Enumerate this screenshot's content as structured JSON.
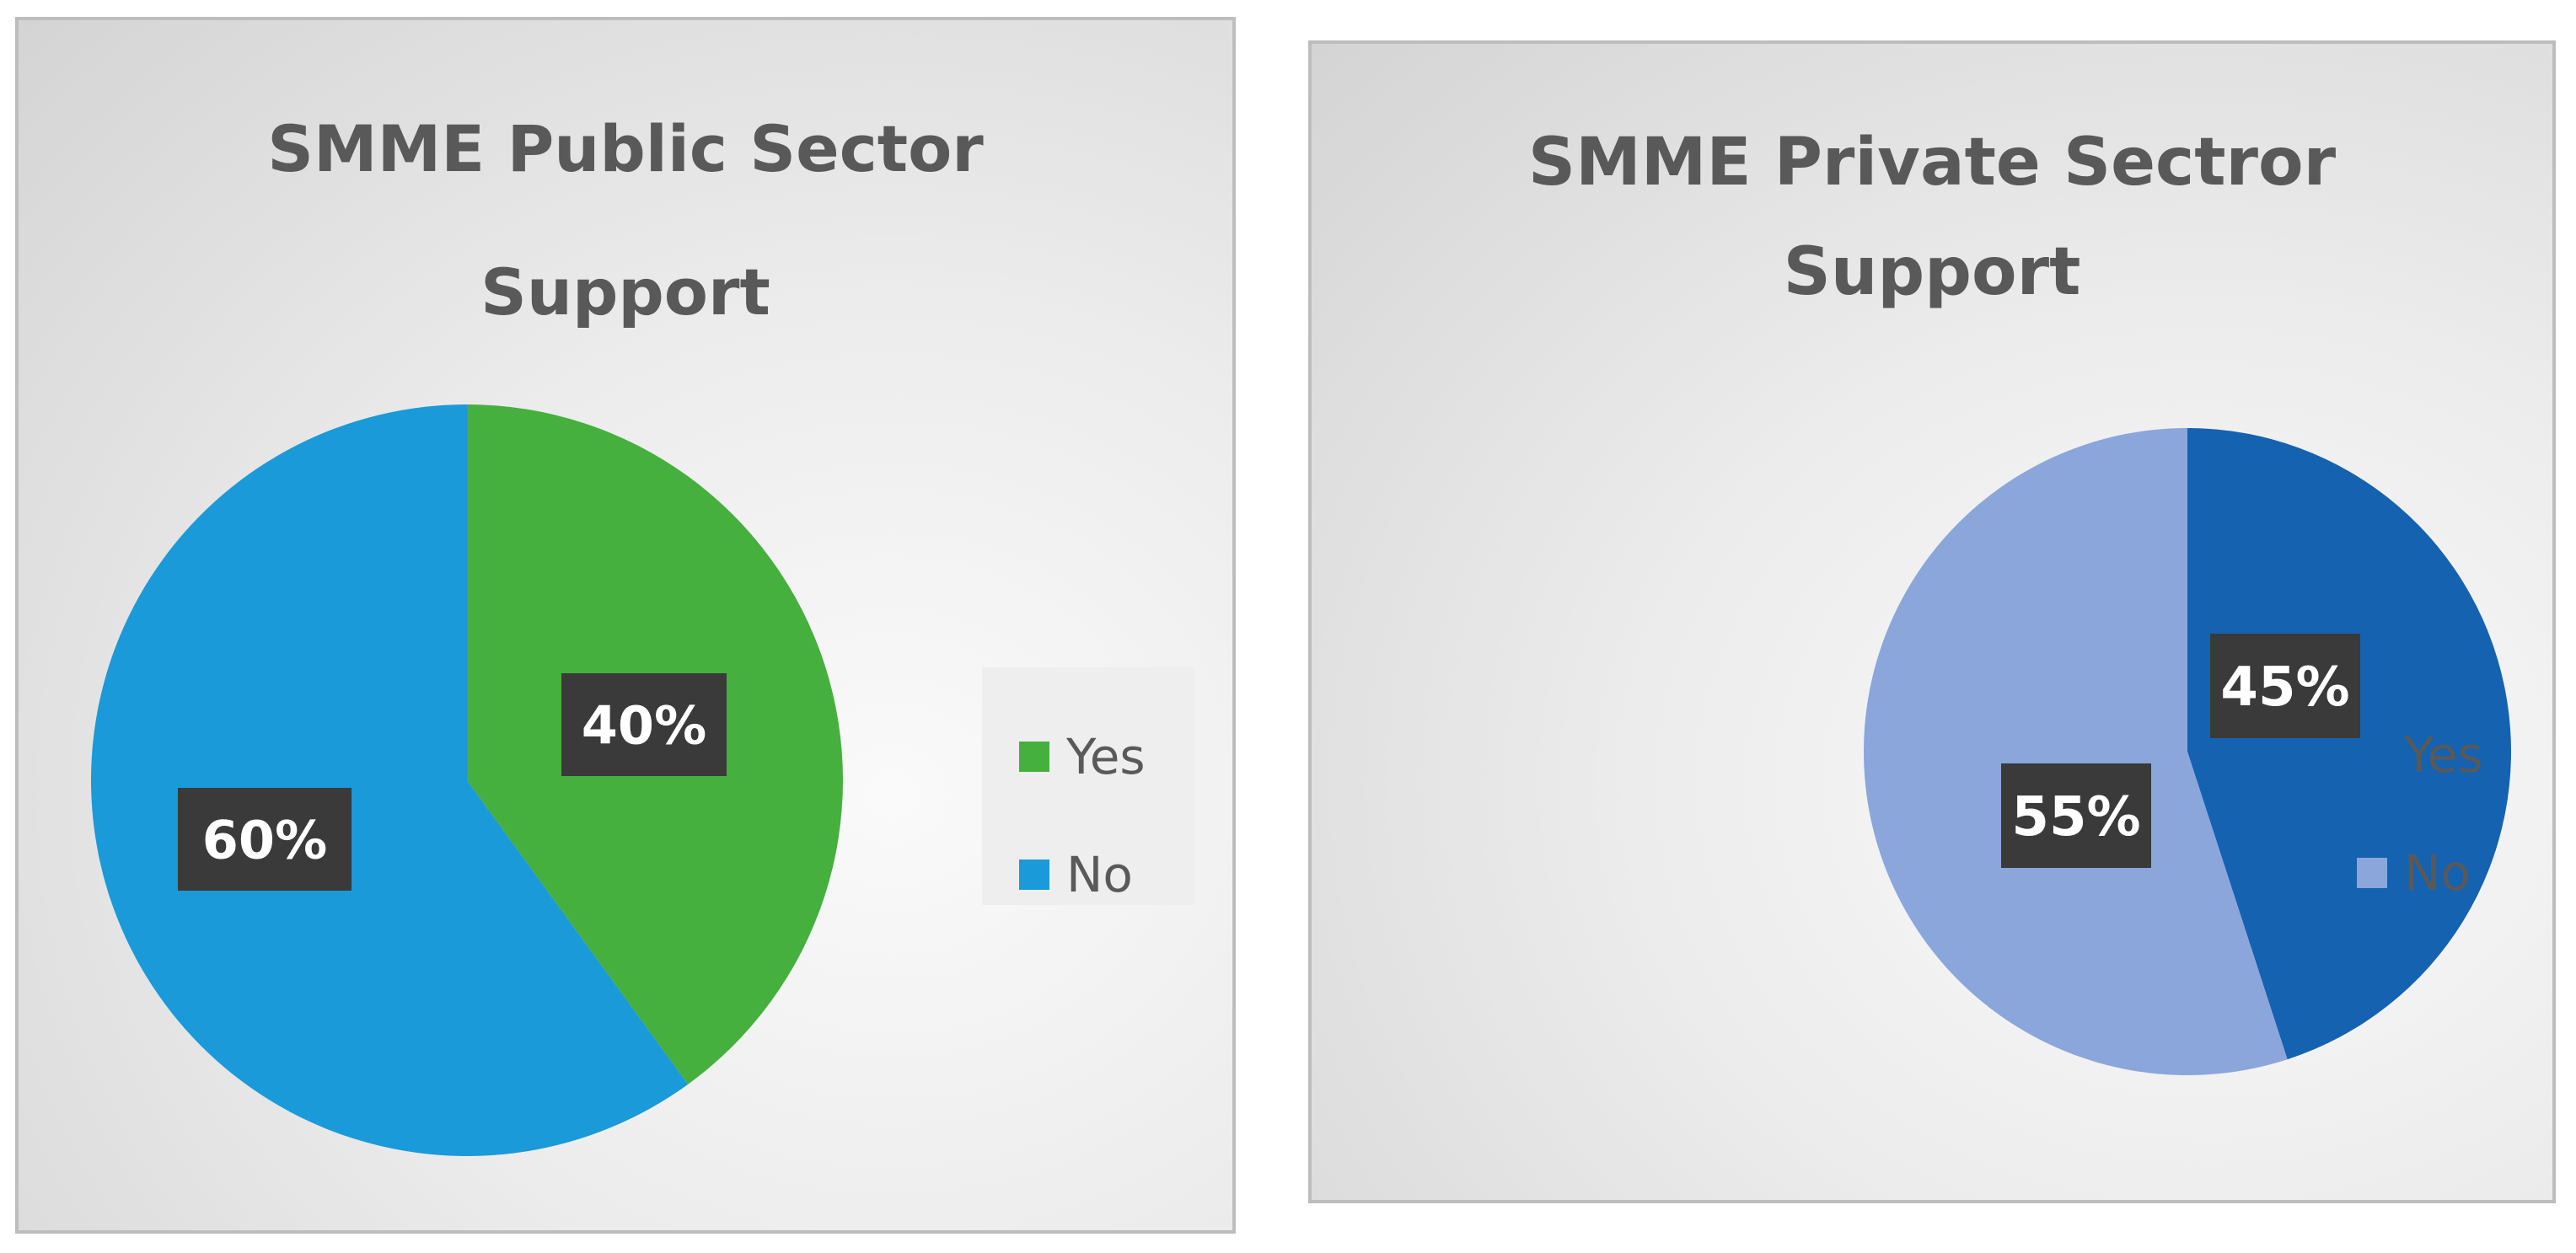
{
  "chart_data": [
    {
      "type": "pie",
      "title": "SMME Public Sector\nSupport",
      "categories": [
        "Yes",
        "No"
      ],
      "values": [
        40,
        60
      ],
      "data_labels": [
        "40%",
        "60%"
      ],
      "colors": [
        "#45b03d",
        "#1a9ad8"
      ],
      "legend_position": "right",
      "legend": [
        "Yes",
        "No"
      ]
    },
    {
      "type": "pie",
      "title": "SMME Private Sectror\nSupport",
      "categories": [
        "Yes",
        "No"
      ],
      "values": [
        45,
        55
      ],
      "data_labels": [
        "45%",
        "55%"
      ],
      "colors": [
        "#1562b0",
        "#8aa6db"
      ],
      "legend_position": "right",
      "legend": [
        "Yes",
        "No"
      ]
    }
  ]
}
